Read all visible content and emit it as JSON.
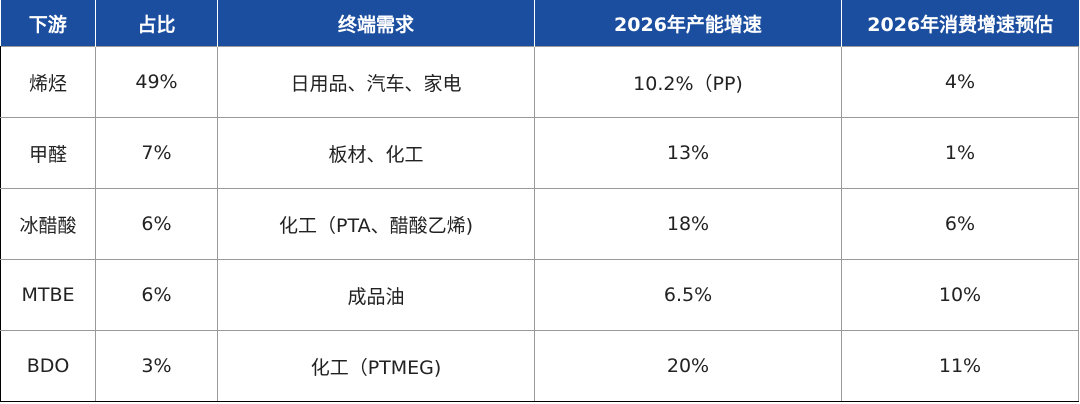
{
  "table": {
    "headers": [
      "下游",
      "占比",
      "终端需求",
      "2026年产能增速",
      "2026年消费增速预估"
    ],
    "rows": [
      [
        "烯烃",
        "49%",
        "日用品、汽车、家电",
        "10.2%（PP)",
        "4%"
      ],
      [
        "甲醛",
        "7%",
        "板材、化工",
        "13%",
        "1%"
      ],
      [
        "冰醋酸",
        "6%",
        "化工（PTA、醋酸乙烯)",
        "18%",
        "6%"
      ],
      [
        "MTBE",
        "6%",
        "成品油",
        "6.5%",
        "10%"
      ],
      [
        "BDO",
        "3%",
        "化工（PTMEG)",
        "20%",
        "11%"
      ]
    ]
  },
  "colors": {
    "header_bg": "#1c4ea0",
    "header_text": "#ffffff",
    "cell_text": "#222222",
    "border": "#9a9a9a"
  }
}
